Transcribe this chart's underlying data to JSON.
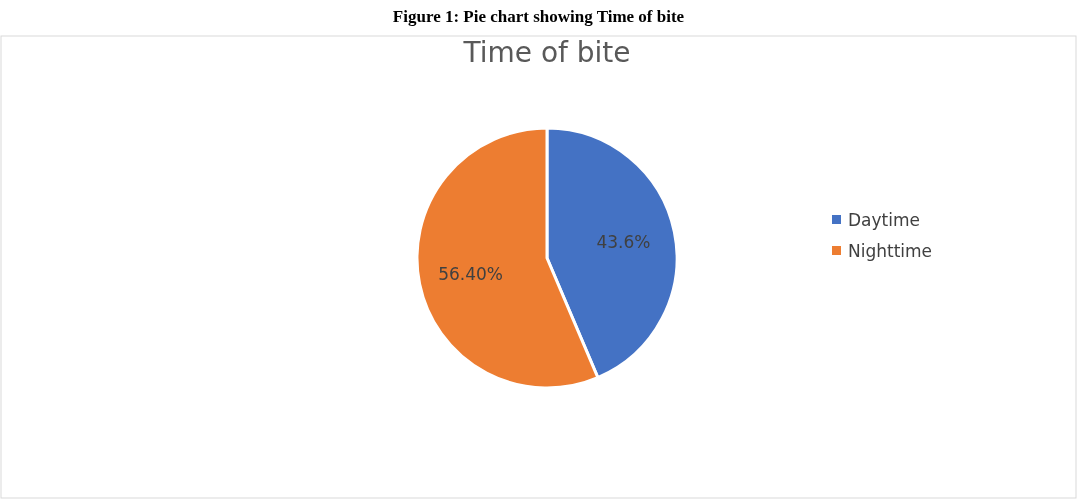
{
  "chart_data": {
    "type": "pie",
    "title": "Time of bite",
    "annotations": [
      "Figure 1: Pie chart showing Time of bite"
    ],
    "categories": [
      "Daytime",
      "Nighttime"
    ],
    "values": [
      43.6,
      56.4
    ],
    "value_labels": [
      "43.6%",
      "56.40%"
    ],
    "colors": [
      "#4472c4",
      "#ed7d31"
    ],
    "legend": "right"
  }
}
